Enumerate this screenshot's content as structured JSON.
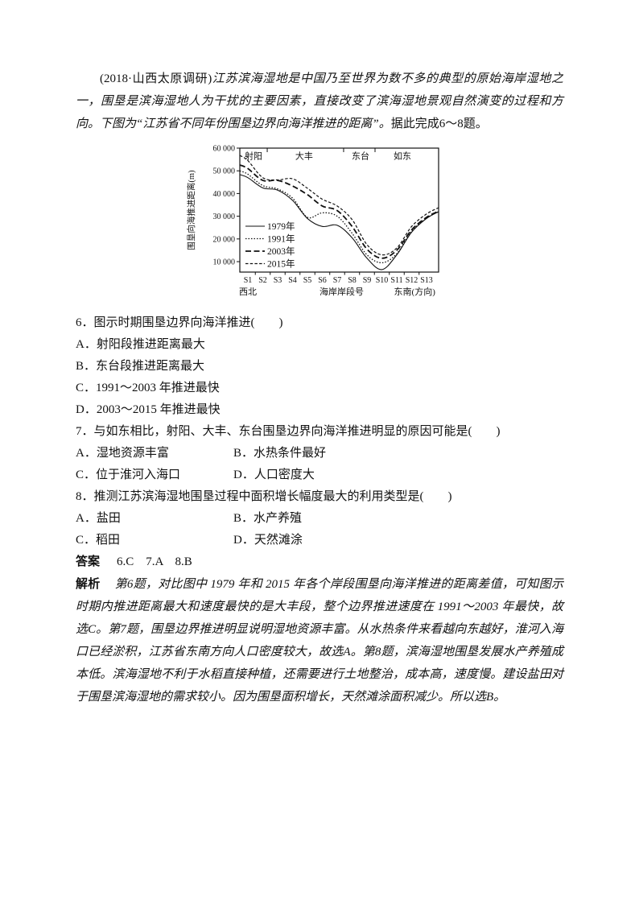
{
  "page": {
    "intro": {
      "prefix": "(2018·山西太原调研)",
      "stimulus": "江苏滨海湿地是中国乃至世界为数不多的典型的原始海岸湿地之一，围垦是滨海湿地人为干扰的主要因素，直接改变了滨海湿地景观自然演变的过程和方向。下图为“江苏省不同年份围垦边界向海洋推进的距离”。",
      "suffix": "据此完成6～8题。"
    },
    "questions": [
      {
        "stem": "6．图示时期围垦边界向海洋推进(　　)",
        "options": [
          "A．射阳段推进距离最大",
          "B．东台段推进距离最大",
          "C．1991～2003 年推进最快",
          "D．2003～2015 年推进最快"
        ]
      },
      {
        "stem": "7．与如东相比，射阳、大丰、东台围垦边界向海洋推进明显的原因可能是(　　)",
        "options": [
          "A．湿地资源丰富",
          "B．水热条件最好",
          "C．位于淮河入海口",
          "D．人口密度大"
        ]
      },
      {
        "stem": "8．推测江苏滨海湿地围垦过程中面积增长幅度最大的利用类型是(　　)",
        "options": [
          "A．盐田",
          "B．水产养殖",
          "C．稻田",
          "D．天然滩涂"
        ]
      }
    ],
    "answer": {
      "label": "答案",
      "text": "6.C　7.A　8.B"
    },
    "analysis": {
      "label": "解析",
      "text": "第6题，对比图中 1979 年和 2015 年各个岸段围垦向海洋推进的距离差值，可知图示时期内推进距离最大和速度最快的是大丰段，整个边界推进速度在 1991～2003 年最快，故选C。第7题，围垦边界推进明显说明湿地资源丰富。从水热条件来看越向东越好，淮河入海口已经淤积，江苏省东南方向人口密度较大，故选A。第8题，滨海湿地围垦发展水产养殖成本低。滨海湿地不利于水稻直接种植，还需要进行土地整治，成本高，速度慢。建设盐田对于围垦滨海湿地的需求较小。因为围垦面积增长，天然滩涂面积减少。所以选B。"
    }
  },
  "chart_data": {
    "type": "line",
    "title": "",
    "ylabel": "围垦向海推进距离(m)",
    "xlabel": "海岸岸段号",
    "x_left_label": "西北",
    "x_right_label": "东南(方向)",
    "categories": [
      "S1",
      "S2",
      "S3",
      "S4",
      "S5",
      "S6",
      "S7",
      "S8",
      "S9",
      "S10",
      "S11",
      "S12",
      "S13"
    ],
    "ylim": [
      5400,
      60000
    ],
    "yticks": [
      10000,
      20000,
      30000,
      40000,
      50000,
      60000
    ],
    "ytick_labels": [
      "10 000",
      "20 000",
      "30 000",
      "40 000",
      "50 000",
      "60 000"
    ],
    "grid": false,
    "legend_position": "lower-left",
    "regions": [
      {
        "label": "射阳",
        "center": 0.38
      },
      {
        "label": "大丰",
        "center": 3.78
      },
      {
        "label": "东台",
        "center": 7.57
      },
      {
        "label": "如东",
        "center": 10.38
      }
    ],
    "region_dividers": [
      1.3,
      6.43,
      8.54
    ],
    "series": [
      {
        "name": "1979年",
        "dash": "solid",
        "values": [
          47000,
          42500,
          41500,
          37000,
          29000,
          25500,
          26000,
          20500,
          11500,
          6500,
          13000,
          23000,
          29000
        ]
      },
      {
        "name": "1991年",
        "dash": "dotted",
        "values": [
          48500,
          43500,
          42000,
          38000,
          29500,
          31500,
          30000,
          22500,
          13000,
          9500,
          13500,
          23500,
          29200
        ]
      },
      {
        "name": "2003年",
        "dash": "longdash",
        "values": [
          51000,
          45800,
          45800,
          43300,
          39500,
          34500,
          32500,
          25500,
          15500,
          11500,
          15000,
          24000,
          29500
        ]
      },
      {
        "name": "2015年",
        "dash": "shortdash",
        "values": [
          54500,
          47000,
          46000,
          46500,
          42300,
          37500,
          34500,
          28500,
          17500,
          13000,
          16000,
          25500,
          31000
        ]
      }
    ]
  }
}
